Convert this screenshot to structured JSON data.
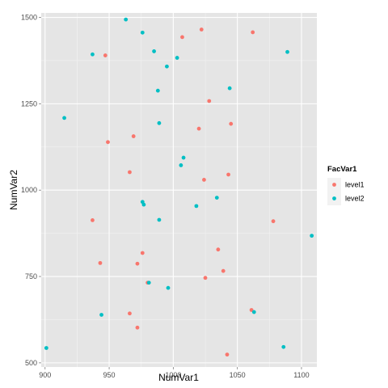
{
  "chart_data": {
    "type": "scatter",
    "xlabel": "NumVar1",
    "ylabel": "NumVar2",
    "xlim": [
      897,
      1112
    ],
    "ylim": [
      488,
      1513
    ],
    "xticks": [
      900,
      950,
      1000,
      1050,
      1100
    ],
    "yticks": [
      500,
      750,
      1000,
      1250,
      1500
    ],
    "grid": true,
    "legend": {
      "title": "FacVar1",
      "placement": "right",
      "entries": [
        "level1",
        "level2"
      ]
    },
    "series": [
      {
        "name": "level1",
        "color": "#F8766D",
        "points": [
          {
            "x": 947,
            "y": 1390
          },
          {
            "x": 1007,
            "y": 1443
          },
          {
            "x": 1022,
            "y": 1465
          },
          {
            "x": 1062,
            "y": 1457
          },
          {
            "x": 1028,
            "y": 1258
          },
          {
            "x": 1045,
            "y": 1192
          },
          {
            "x": 1020,
            "y": 1178
          },
          {
            "x": 969,
            "y": 1156
          },
          {
            "x": 949,
            "y": 1139
          },
          {
            "x": 966,
            "y": 1052
          },
          {
            "x": 1043,
            "y": 1045
          },
          {
            "x": 1024,
            "y": 1030
          },
          {
            "x": 937,
            "y": 913
          },
          {
            "x": 1078,
            "y": 910
          },
          {
            "x": 1035,
            "y": 828
          },
          {
            "x": 976,
            "y": 818
          },
          {
            "x": 943,
            "y": 789
          },
          {
            "x": 972,
            "y": 787
          },
          {
            "x": 1039,
            "y": 766
          },
          {
            "x": 1025,
            "y": 746
          },
          {
            "x": 980,
            "y": 732
          },
          {
            "x": 966,
            "y": 643
          },
          {
            "x": 1061,
            "y": 653
          },
          {
            "x": 972,
            "y": 602
          },
          {
            "x": 1042,
            "y": 524
          }
        ]
      },
      {
        "name": "level2",
        "color": "#00BFC4",
        "points": [
          {
            "x": 963,
            "y": 1494
          },
          {
            "x": 976,
            "y": 1456
          },
          {
            "x": 937,
            "y": 1393
          },
          {
            "x": 985,
            "y": 1402
          },
          {
            "x": 1003,
            "y": 1383
          },
          {
            "x": 1089,
            "y": 1400
          },
          {
            "x": 995,
            "y": 1358
          },
          {
            "x": 988,
            "y": 1288
          },
          {
            "x": 1044,
            "y": 1295
          },
          {
            "x": 915,
            "y": 1209
          },
          {
            "x": 989,
            "y": 1194
          },
          {
            "x": 1008,
            "y": 1094
          },
          {
            "x": 1006,
            "y": 1072
          },
          {
            "x": 1034,
            "y": 978
          },
          {
            "x": 976,
            "y": 966
          },
          {
            "x": 977,
            "y": 958
          },
          {
            "x": 1018,
            "y": 954
          },
          {
            "x": 989,
            "y": 914
          },
          {
            "x": 1108,
            "y": 868
          },
          {
            "x": 981,
            "y": 732
          },
          {
            "x": 996,
            "y": 717
          },
          {
            "x": 944,
            "y": 639
          },
          {
            "x": 1063,
            "y": 647
          },
          {
            "x": 901,
            "y": 543
          },
          {
            "x": 1086,
            "y": 546
          }
        ]
      }
    ]
  }
}
